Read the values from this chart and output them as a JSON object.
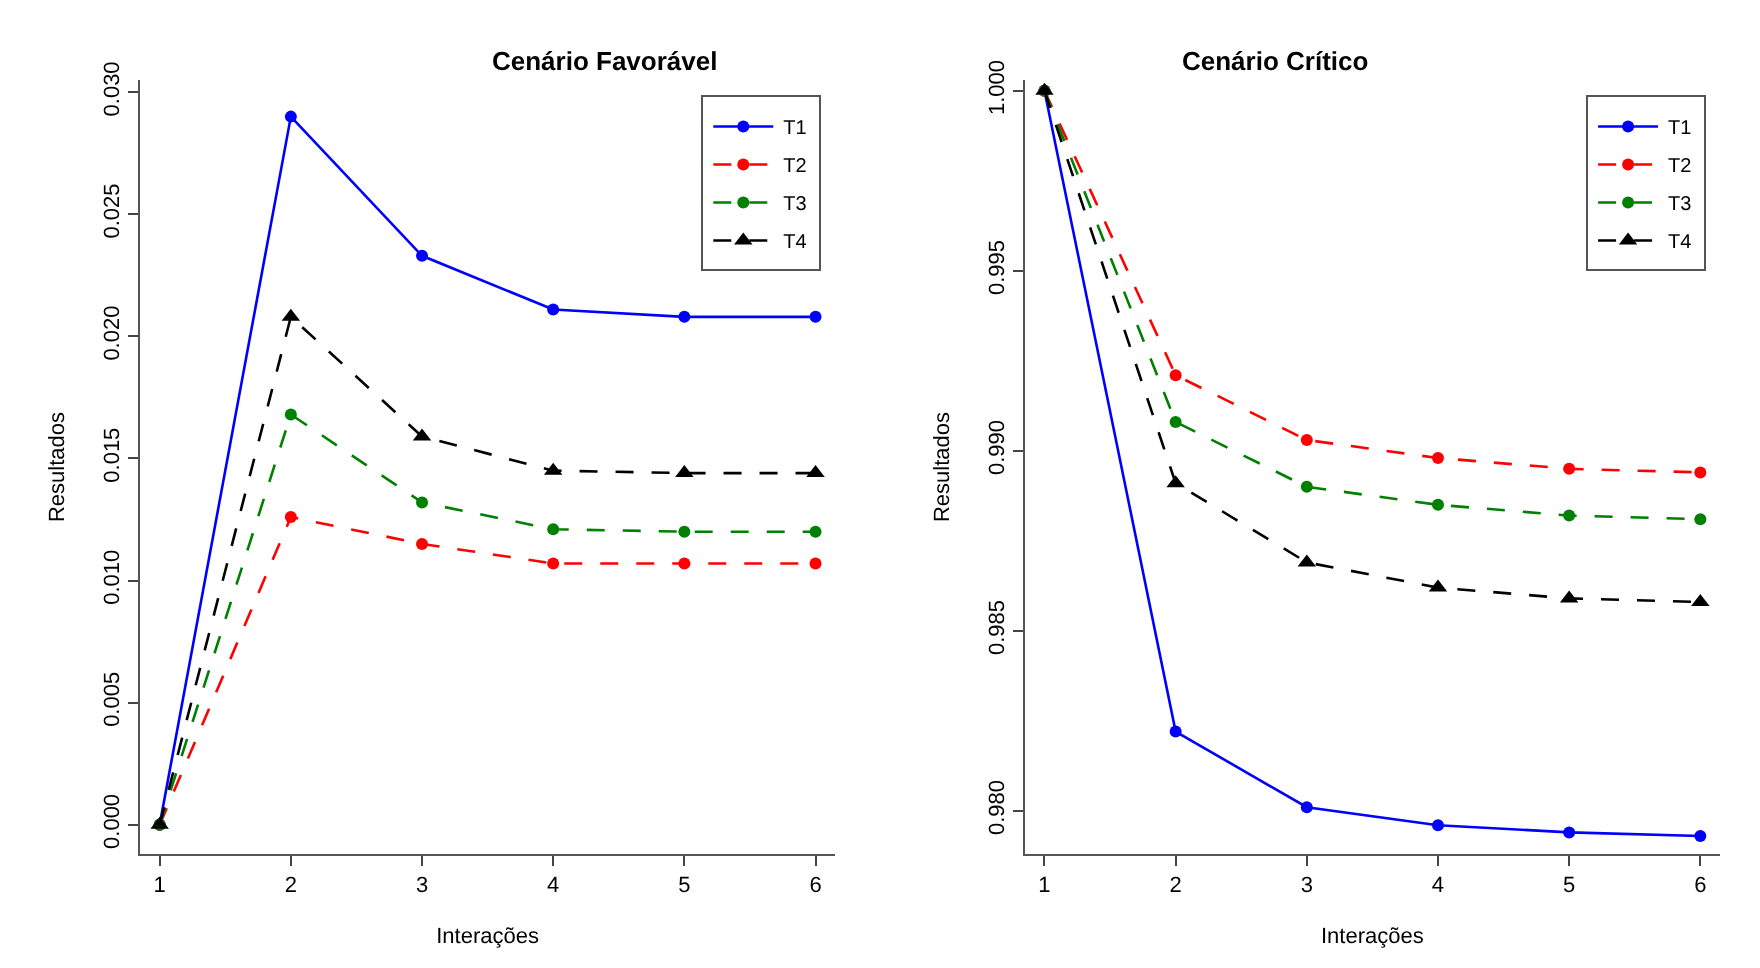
{
  "chart_data": [
    {
      "type": "line",
      "title": "Cenário Favorável",
      "xlabel": "Interações",
      "ylabel": "Resultados",
      "x": [
        1,
        2,
        3,
        4,
        5,
        6
      ],
      "xlim": [
        0.85,
        6.15
      ],
      "xticks": [
        1,
        2,
        3,
        4,
        5,
        6
      ],
      "ylim": [
        -0.0012,
        0.0305
      ],
      "yticks": [
        {
          "value": 0,
          "label": "0.000"
        },
        {
          "value": 0.005,
          "label": "0.005"
        },
        {
          "value": 0.01,
          "label": "0.010"
        },
        {
          "value": 0.015,
          "label": "0.015"
        },
        {
          "value": 0.02,
          "label": "0.020"
        },
        {
          "value": 0.025,
          "label": "0.025"
        },
        {
          "value": 0.03,
          "label": "0.030"
        }
      ],
      "legend": "top right",
      "series": [
        {
          "name": "T1",
          "color": "#0000ff",
          "marker": "circle",
          "line_style": "solid",
          "values": [
            0.0,
            0.029,
            0.0233,
            0.0211,
            0.0208,
            0.0208
          ]
        },
        {
          "name": "T2",
          "color": "#ff0000",
          "marker": "circle",
          "line_style": "dashed",
          "values": [
            0.0,
            0.0126,
            0.0115,
            0.0107,
            0.0107,
            0.0107
          ]
        },
        {
          "name": "T3",
          "color": "#008000",
          "marker": "circle",
          "line_style": "dashed",
          "values": [
            0.0,
            0.0168,
            0.0132,
            0.0121,
            0.012,
            0.012
          ]
        },
        {
          "name": "T4",
          "color": "#000000",
          "marker": "triangle",
          "line_style": "dashed",
          "values": [
            0.0,
            0.0208,
            0.0159,
            0.0145,
            0.0144,
            0.0144
          ]
        }
      ]
    },
    {
      "type": "line",
      "title": "Cenário Crítico",
      "xlabel": "Interações",
      "ylabel": "Resultados",
      "x": [
        1,
        2,
        3,
        4,
        5,
        6
      ],
      "xlim": [
        0.85,
        6.15
      ],
      "xticks": [
        1,
        2,
        3,
        4,
        5,
        6
      ],
      "ylim": [
        0.9788,
        1.0003
      ],
      "yticks": [
        {
          "value": 0.98,
          "label": "0.980"
        },
        {
          "value": 0.985,
          "label": "0.985"
        },
        {
          "value": 0.99,
          "label": "0.990"
        },
        {
          "value": 0.995,
          "label": "0.995"
        },
        {
          "value": 1,
          "label": "1.000"
        }
      ],
      "legend": "top right",
      "series": [
        {
          "name": "T1",
          "color": "#0000ff",
          "marker": "circle",
          "line_style": "solid",
          "values": [
            1.0,
            0.9822,
            0.9801,
            0.9796,
            0.9794,
            0.9793
          ]
        },
        {
          "name": "T2",
          "color": "#ff0000",
          "marker": "circle",
          "line_style": "dashed",
          "values": [
            1.0,
            0.9921,
            0.9903,
            0.9898,
            0.9895,
            0.9894
          ]
        },
        {
          "name": "T3",
          "color": "#008000",
          "marker": "circle",
          "line_style": "dashed",
          "values": [
            1.0,
            0.9908,
            0.989,
            0.9885,
            0.9882,
            0.9881
          ]
        },
        {
          "name": "T4",
          "color": "#000000",
          "marker": "triangle",
          "line_style": "dashed",
          "values": [
            1.0,
            0.9891,
            0.9869,
            0.9862,
            0.9859,
            0.9858
          ]
        }
      ]
    }
  ]
}
